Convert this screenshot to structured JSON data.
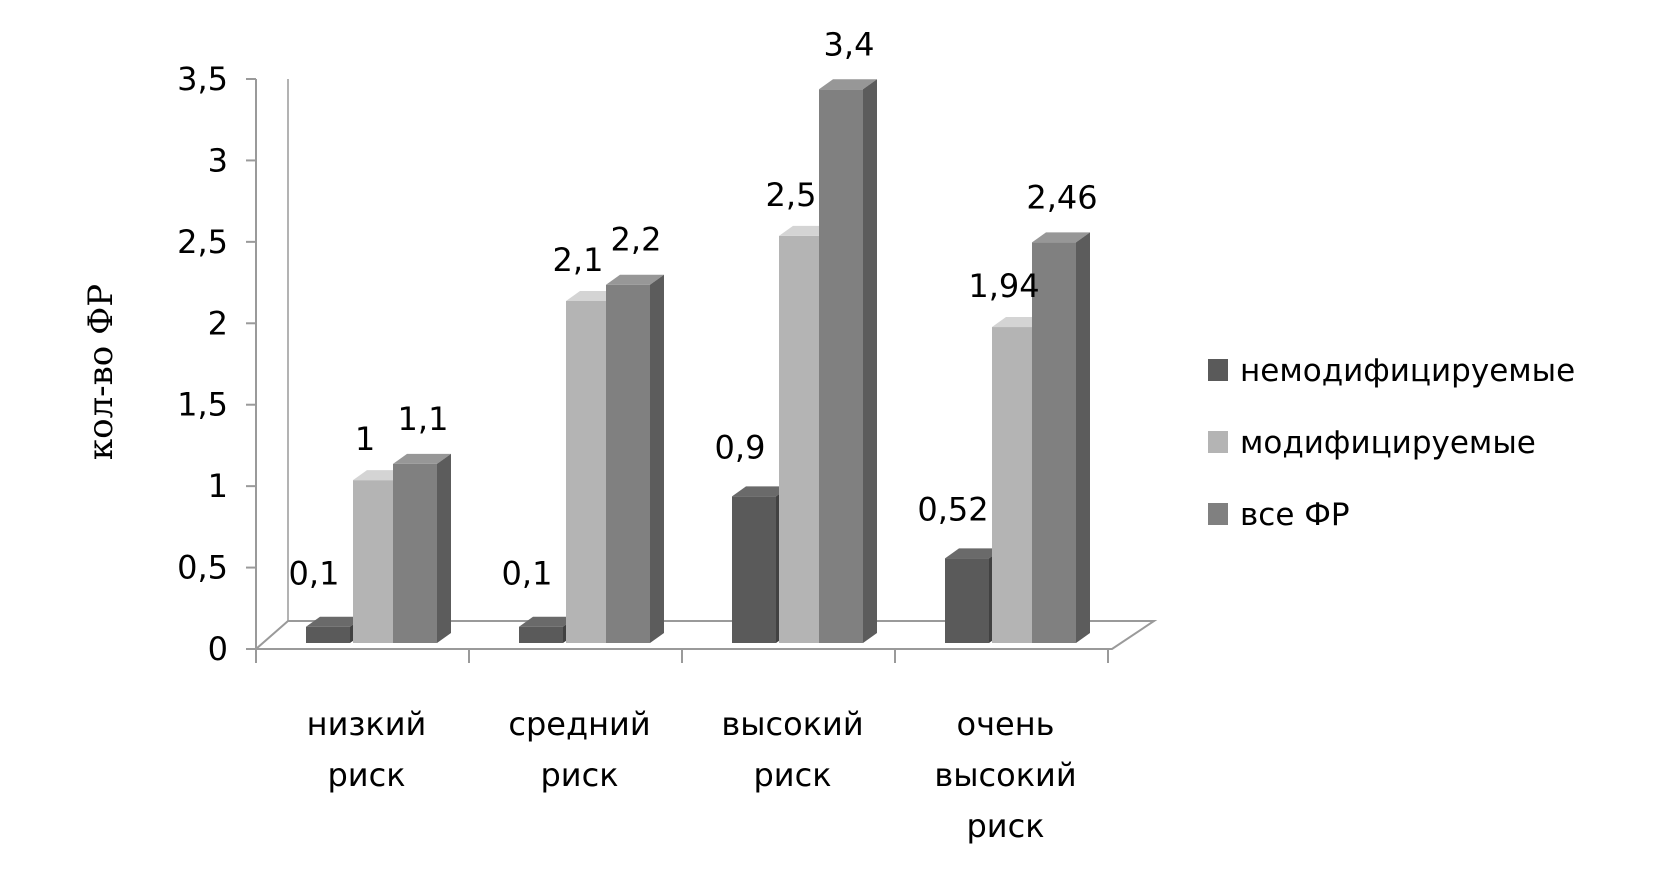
{
  "chart_data": {
    "type": "bar",
    "title": "",
    "xlabel": "",
    "ylabel": "кол-во ФР",
    "ylim": [
      0,
      3.5
    ],
    "yticks": [
      0,
      0.5,
      1,
      1.5,
      2,
      2.5,
      3,
      3.5
    ],
    "ytick_labels": [
      "0",
      "0,5",
      "1",
      "1,5",
      "2",
      "2,5",
      "3",
      "3,5"
    ],
    "categories": [
      [
        "низкий",
        "риск"
      ],
      [
        "средний",
        "риск"
      ],
      [
        "высокий",
        "риск"
      ],
      [
        "очень",
        "высокий",
        "риск"
      ]
    ],
    "series": [
      {
        "name": "немодифицируемые",
        "color": "#5a5a5a",
        "values": [
          0.1,
          0.1,
          0.9,
          0.52
        ],
        "labels": [
          "0,1",
          "0,1",
          "0,9",
          "0,52"
        ]
      },
      {
        "name": "модифицируемые",
        "color": "#b4b4b4",
        "values": [
          1,
          2.1,
          2.5,
          1.94
        ],
        "labels": [
          "1",
          "2,1",
          "2,5",
          "1,94"
        ]
      },
      {
        "name": "все ФР",
        "color": "#808080",
        "values": [
          1.1,
          2.2,
          3.4,
          2.46
        ],
        "labels": [
          "1,1",
          "2,2",
          "3,4",
          "2,46"
        ]
      }
    ],
    "legend_position": "right",
    "grid": false,
    "style": "3d-clustered-column"
  }
}
